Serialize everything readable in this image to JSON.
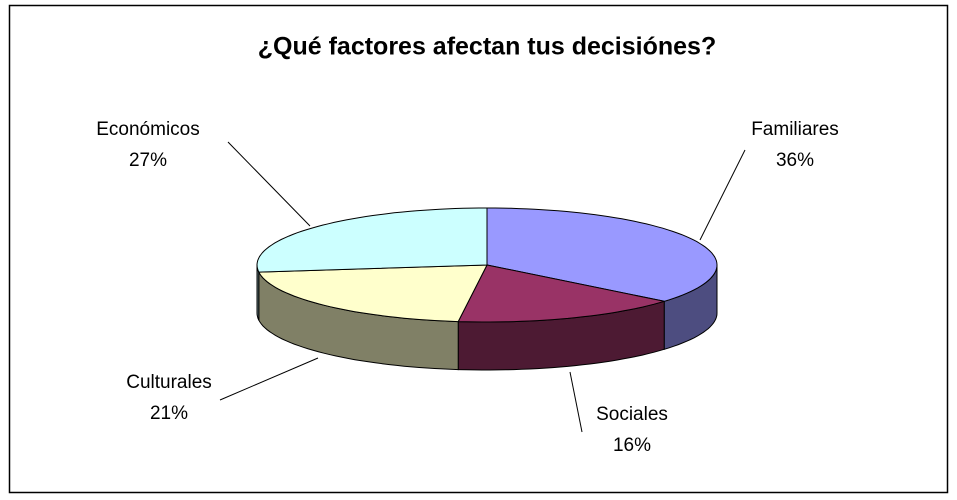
{
  "chart_data": {
    "type": "pie",
    "title": "¿Qué factores afectan tus decisiónes?",
    "categories": [
      "Familiares",
      "Sociales",
      "Culturales",
      "Económicos"
    ],
    "values": [
      36,
      16,
      21,
      27
    ],
    "value_labels": [
      "36%",
      "16%",
      "21%",
      "27%"
    ],
    "colors": [
      "#9999ff",
      "#993366",
      "#ffffcc",
      "#ccffff"
    ],
    "side_colors": [
      "#4d4d80",
      "#4d1a33",
      "#808066",
      "#668080"
    ],
    "three_d": true
  }
}
